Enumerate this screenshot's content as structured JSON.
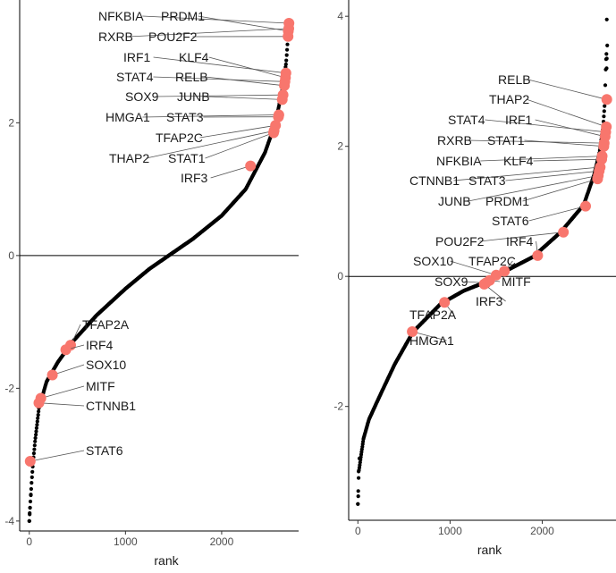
{
  "chart_data": [
    {
      "type": "scatter",
      "xlabel": "rank",
      "ylabel": "",
      "xlim": [
        -100,
        2800
      ],
      "ylim": [
        -4.15,
        3.85
      ],
      "x_ticks": [
        0,
        1000,
        2000
      ],
      "y_ticks": [
        -4,
        -2,
        0,
        2
      ],
      "hline": 0,
      "n_points": 2700,
      "curve": [
        [
          0,
          -4.0
        ],
        [
          8,
          -3.8
        ],
        [
          25,
          -3.4
        ],
        [
          40,
          -3.1
        ],
        [
          60,
          -2.8
        ],
        [
          100,
          -2.3
        ],
        [
          180,
          -1.9
        ],
        [
          300,
          -1.6
        ],
        [
          450,
          -1.3
        ],
        [
          700,
          -0.9
        ],
        [
          1000,
          -0.5
        ],
        [
          1250,
          -0.2
        ],
        [
          1450,
          0.0
        ],
        [
          1700,
          0.25
        ],
        [
          2000,
          0.6
        ],
        [
          2250,
          1.0
        ],
        [
          2450,
          1.55
        ],
        [
          2560,
          2.0
        ],
        [
          2630,
          2.5
        ],
        [
          2670,
          2.9
        ],
        [
          2690,
          3.3
        ],
        [
          2700,
          3.5
        ]
      ],
      "highlighted": [
        {
          "label": "NFKBIA",
          "x": 2700,
          "y": 3.5
        },
        {
          "label": "PRDM1",
          "x": 2693,
          "y": 3.38
        },
        {
          "label": "RXRB",
          "x": 2698,
          "y": 3.42
        },
        {
          "label": "POU2F2",
          "x": 2690,
          "y": 3.3
        },
        {
          "label": "IRF1",
          "x": 2668,
          "y": 2.75
        },
        {
          "label": "KLF4",
          "x": 2663,
          "y": 2.68
        },
        {
          "label": "STAT4",
          "x": 2658,
          "y": 2.62
        },
        {
          "label": "RELB",
          "x": 2652,
          "y": 2.56
        },
        {
          "label": "SOX9",
          "x": 2638,
          "y": 2.42
        },
        {
          "label": "JUNB",
          "x": 2630,
          "y": 2.35
        },
        {
          "label": "HMGA1",
          "x": 2595,
          "y": 2.12
        },
        {
          "label": "STAT3",
          "x": 2590,
          "y": 2.09
        },
        {
          "label": "TFAP2C",
          "x": 2560,
          "y": 1.96
        },
        {
          "label": "THAP2",
          "x": 2545,
          "y": 1.88
        },
        {
          "label": "STAT1",
          "x": 2540,
          "y": 1.85
        },
        {
          "label": "IRF3",
          "x": 2300,
          "y": 1.35
        },
        {
          "label": "TFAP2A",
          "x": 430,
          "y": -1.35
        },
        {
          "label": "IRF4",
          "x": 380,
          "y": -1.42
        },
        {
          "label": "SOX10",
          "x": 240,
          "y": -1.8
        },
        {
          "label": "MITF",
          "x": 120,
          "y": -2.15
        },
        {
          "label": "CTNNB1",
          "x": 100,
          "y": -2.22
        },
        {
          "label": "STAT6",
          "x": 10,
          "y": -3.1
        }
      ]
    },
    {
      "type": "scatter",
      "xlabel": "rank",
      "ylabel": "",
      "xlim": [
        -100,
        2800
      ],
      "ylim": [
        -3.75,
        4.25
      ],
      "x_ticks": [
        0,
        1000,
        2000
      ],
      "y_ticks": [
        -2,
        0,
        2,
        4
      ],
      "hline": 0,
      "n_points": 2700,
      "curve": [
        [
          0,
          -3.5
        ],
        [
          10,
          -3.0
        ],
        [
          30,
          -2.8
        ],
        [
          60,
          -2.5
        ],
        [
          120,
          -2.2
        ],
        [
          250,
          -1.8
        ],
        [
          400,
          -1.35
        ],
        [
          600,
          -0.85
        ],
        [
          900,
          -0.42
        ],
        [
          1150,
          -0.22
        ],
        [
          1400,
          -0.08
        ],
        [
          1600,
          0.08
        ],
        [
          1900,
          0.3
        ],
        [
          2200,
          0.68
        ],
        [
          2450,
          1.1
        ],
        [
          2560,
          1.55
        ],
        [
          2620,
          1.9
        ],
        [
          2660,
          2.3
        ],
        [
          2680,
          2.7
        ],
        [
          2690,
          3.3
        ],
        [
          2700,
          3.5
        ]
      ],
      "extra_points": [
        [
          2700,
          3.95
        ],
        [
          2705,
          3.55
        ],
        [
          2700,
          3.35
        ],
        [
          2698,
          3.2
        ]
      ],
      "highlighted": [
        {
          "label": "RELB",
          "x": 2700,
          "y": 2.72
        },
        {
          "label": "THAP2",
          "x": 2695,
          "y": 2.3
        },
        {
          "label": "STAT4",
          "x": 2688,
          "y": 2.22
        },
        {
          "label": "IRF1",
          "x": 2683,
          "y": 2.15
        },
        {
          "label": "RXRB",
          "x": 2672,
          "y": 2.05
        },
        {
          "label": "STAT1",
          "x": 2668,
          "y": 2.0
        },
        {
          "label": "NFKBIA",
          "x": 2650,
          "y": 1.85
        },
        {
          "label": "KLF4",
          "x": 2645,
          "y": 1.8
        },
        {
          "label": "CTNNB1",
          "x": 2628,
          "y": 1.68
        },
        {
          "label": "STAT3",
          "x": 2618,
          "y": 1.62
        },
        {
          "label": "JUNB",
          "x": 2608,
          "y": 1.55
        },
        {
          "label": "PRDM1",
          "x": 2600,
          "y": 1.5
        },
        {
          "label": "STAT6",
          "x": 2470,
          "y": 1.08
        },
        {
          "label": "POU2F2",
          "x": 2230,
          "y": 0.68
        },
        {
          "label": "IRF4",
          "x": 1950,
          "y": 0.32
        },
        {
          "label": "SOX10",
          "x": 1500,
          "y": 0.02
        },
        {
          "label": "TFAP2C",
          "x": 1590,
          "y": 0.08
        },
        {
          "label": "SOX9",
          "x": 1390,
          "y": -0.1
        },
        {
          "label": "MITF",
          "x": 1430,
          "y": -0.06
        },
        {
          "label": "IRF3",
          "x": 1370,
          "y": -0.12
        },
        {
          "label": "TFAP2A",
          "x": 940,
          "y": -0.4
        },
        {
          "label": "HMGA1",
          "x": 590,
          "y": -0.85
        }
      ]
    }
  ]
}
